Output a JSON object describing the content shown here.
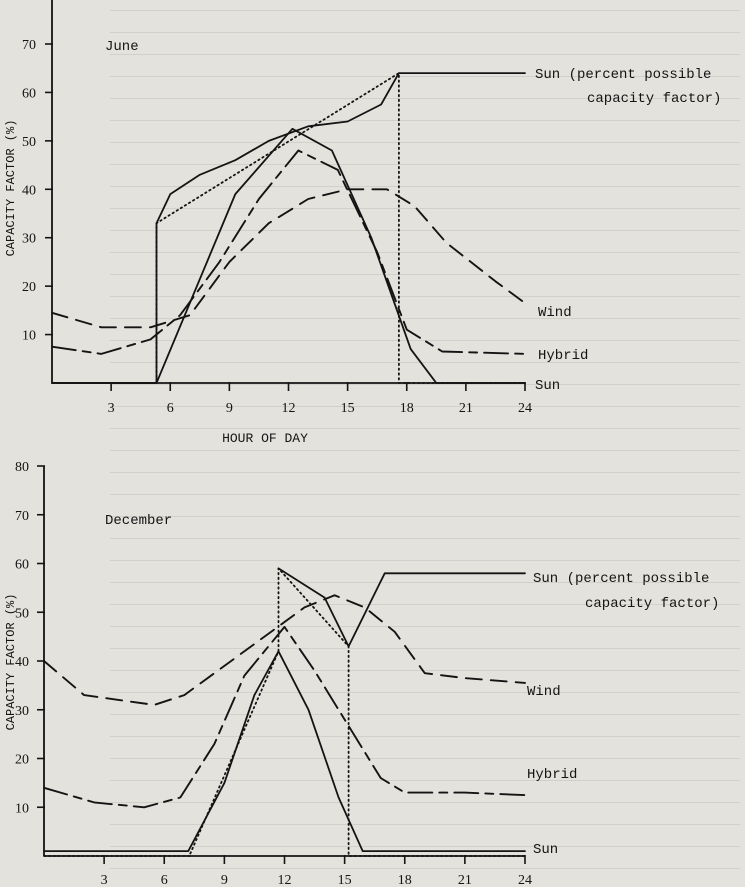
{
  "chart_data": [
    {
      "type": "line",
      "title": "June",
      "xlabel": "HOUR OF DAY",
      "ylabel": "CAPACITY FACTOR (%)",
      "xlim": [
        0,
        24
      ],
      "ylim": [
        0,
        70
      ],
      "x_ticks": [
        "3",
        "6",
        "9",
        "12",
        "15",
        "18",
        "21",
        "24"
      ],
      "y_ticks": [
        "10",
        "20",
        "30",
        "40",
        "50",
        "60",
        "70"
      ],
      "series": [
        {
          "name": "Sun (percent possible capacity factor)",
          "label": [
            "Sun (percent possible",
            "capacity factor)"
          ],
          "style": "solid",
          "x": [
            0,
            5.3,
            5.3,
            6,
            7.5,
            9.3,
            11,
            13,
            15,
            16.7,
            17.6,
            20,
            24
          ],
          "y": [
            0,
            0,
            33,
            39,
            43,
            46,
            50,
            53,
            54,
            57.5,
            64,
            64,
            64
          ]
        },
        {
          "name": "Sun",
          "style": "dotted",
          "x": [
            0,
            5.3,
            5.3,
            17.6,
            17.6,
            24
          ],
          "y": [
            0,
            0,
            33,
            64,
            0,
            0
          ]
        },
        {
          "name": "Sun",
          "label": [
            "Sun"
          ],
          "style": "solid",
          "x": [
            0,
            5.3,
            9.3,
            12.2,
            14.2,
            16.2,
            18.2,
            19.5,
            24
          ],
          "y": [
            0,
            0,
            39,
            52.5,
            48,
            30,
            7,
            0,
            0
          ]
        },
        {
          "name": "Wind",
          "label": [
            "Wind"
          ],
          "style": "dashed",
          "x": [
            0,
            2.5,
            5,
            7,
            9,
            11,
            13,
            15,
            17,
            18.4,
            20,
            22.5,
            24
          ],
          "y": [
            14.5,
            11.5,
            11.5,
            14,
            25,
            33,
            38,
            40,
            40,
            36.5,
            29,
            21,
            16.5
          ]
        },
        {
          "name": "Hybrid",
          "label": [
            "Hybrid"
          ],
          "style": "longdash",
          "x": [
            0,
            2.5,
            5,
            6.5,
            8.5,
            10.5,
            12.5,
            14.5,
            16.5,
            18,
            19.8,
            24
          ],
          "y": [
            7.5,
            6,
            9,
            14,
            25,
            38,
            48,
            44,
            27,
            11,
            6.5,
            6
          ]
        }
      ]
    },
    {
      "type": "line",
      "title": "December",
      "xlabel": "",
      "ylabel": "CAPACITY FACTOR (%)",
      "xlim": [
        0,
        24
      ],
      "ylim": [
        0,
        80
      ],
      "x_ticks": [
        "3",
        "6",
        "9",
        "12",
        "15",
        "18",
        "21",
        "24"
      ],
      "y_ticks": [
        "10",
        "20",
        "30",
        "40",
        "50",
        "60",
        "70",
        "80"
      ],
      "series": [
        {
          "name": "Sun (percent possible capacity factor)",
          "label": [
            "Sun (percent possible",
            "capacity factor)"
          ],
          "style": "solid",
          "x": [
            11.7,
            14,
            15.2,
            17,
            24
          ],
          "y": [
            59,
            53,
            43,
            58,
            58
          ]
        },
        {
          "name": "Sun",
          "style": "dotted",
          "x": [
            0,
            7.3,
            7.3,
            11.7,
            11.7,
            15.2,
            15.2,
            24
          ],
          "y": [
            0,
            0,
            0.5,
            42,
            59,
            43,
            0,
            0
          ]
        },
        {
          "name": "Sun",
          "label": [
            "Sun"
          ],
          "style": "solid",
          "x": [
            0,
            7.2,
            9,
            10.5,
            11.7,
            13.2,
            14.7,
            15.9,
            24
          ],
          "y": [
            1,
            1,
            15,
            33,
            42,
            30,
            12,
            1,
            1
          ]
        },
        {
          "name": "Wind",
          "label": [
            "Wind"
          ],
          "style": "dashed",
          "x": [
            0,
            2,
            5.5,
            7,
            9,
            11,
            13,
            14.5,
            16,
            17.5,
            19,
            21,
            24
          ],
          "y": [
            40,
            33,
            31,
            33,
            39,
            45,
            51,
            53.5,
            51,
            46,
            37.5,
            36.5,
            35.5
          ]
        },
        {
          "name": "Hybrid",
          "label": [
            "Hybrid"
          ],
          "style": "longdash",
          "x": [
            0,
            2.5,
            5,
            6.8,
            8.5,
            10,
            12,
            13.5,
            15,
            16.8,
            18,
            21,
            24
          ],
          "y": [
            14,
            11,
            10,
            12,
            23,
            37,
            47,
            38,
            28,
            16,
            13,
            13,
            12.5
          ]
        }
      ]
    }
  ]
}
